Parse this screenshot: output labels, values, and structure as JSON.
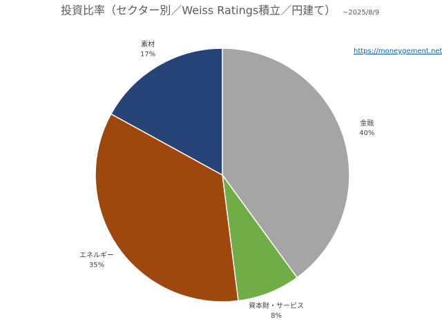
{
  "chart_data": {
    "type": "pie",
    "title": "投資比率（セクター別／Weiss Ratings積立／円建て）",
    "subtitle": "~2025/8/9",
    "annotation": "https://moneygement.net",
    "categories": [
      "金融",
      "資本財・サービス",
      "エネルギー",
      "素材"
    ],
    "values": [
      40,
      8,
      35,
      17
    ],
    "value_labels": [
      "40%",
      "8%",
      "35%",
      "17%"
    ],
    "colors": [
      "#a5a5a5",
      "#70ad47",
      "#9e480e",
      "#264478"
    ]
  }
}
